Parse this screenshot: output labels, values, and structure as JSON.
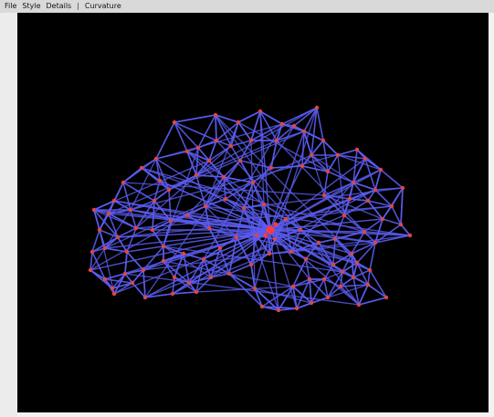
{
  "menubar": {
    "items": [
      {
        "label": "File"
      },
      {
        "label": "Style"
      },
      {
        "label": "Details"
      },
      {
        "separator": "|"
      },
      {
        "label": "Curvature"
      }
    ]
  },
  "graph": {
    "background_color": "#000000",
    "edge_color": "#5a5cf0",
    "node_color": "#e04545",
    "hub_color": "#ff3a3a"
  }
}
